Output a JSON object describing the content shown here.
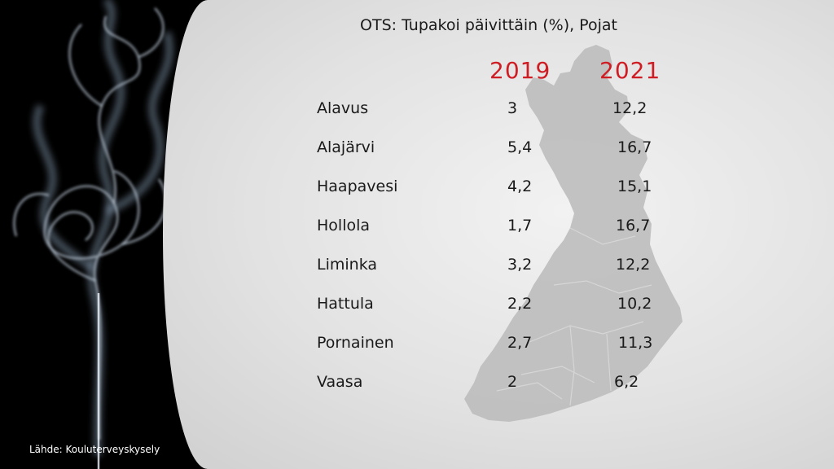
{
  "chart_data": {
    "type": "table",
    "title": "OTS: Tupakoi päivittäin (%), Pojat",
    "columns": [
      "2019",
      "2021"
    ],
    "rows": [
      {
        "name": "Alavus",
        "v2019": "3",
        "v2021": "12,2"
      },
      {
        "name": "Alajärvi",
        "v2019": "5,4",
        "v2021": "16,7"
      },
      {
        "name": "Haapavesi",
        "v2019": "4,2",
        "v2021": "15,1"
      },
      {
        "name": "Hollola",
        "v2019": "1,7",
        "v2021": "16,7"
      },
      {
        "name": "Liminka",
        "v2019": "3,2",
        "v2021": "12,2"
      },
      {
        "name": "Hattula",
        "v2019": "2,2",
        "v2021": "10,2"
      },
      {
        "name": "Pornainen",
        "v2019": "2,7",
        "v2021": "11,3"
      },
      {
        "name": "Vaasa",
        "v2019": "2",
        "v2021": "6,2"
      }
    ]
  },
  "source": "Lähde: Kouluterveyskysely",
  "colors": {
    "year_accent": "#cf1d24",
    "text": "#1a1a1a",
    "map_fill": "#bdbdbd",
    "panel_background": "#e6e6e6",
    "photo_background": "#000000",
    "smoke": "#c8d6e6"
  },
  "decor": {
    "background_image": "smoke-photo",
    "map": "finland-map-silhouette"
  }
}
